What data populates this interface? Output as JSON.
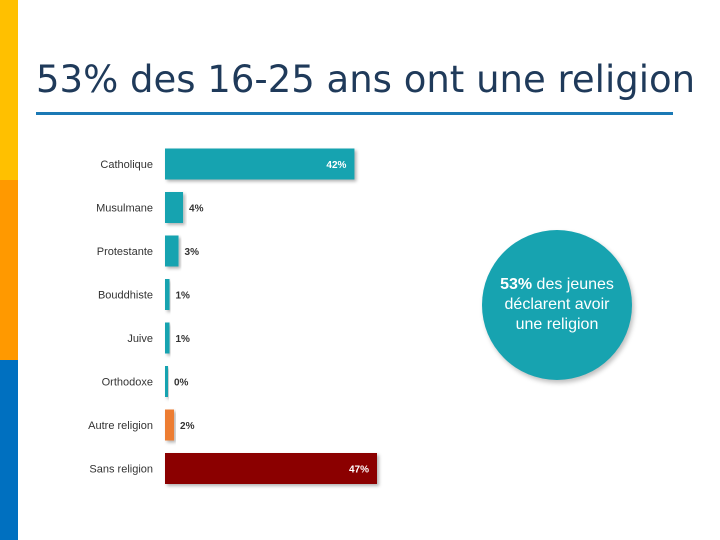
{
  "slide": {
    "title": "53% des 16-25 ans ont une religion"
  },
  "callout": {
    "highlight": "53%",
    "text": " des jeunes déclarent avoir une religion"
  },
  "colors": {
    "religion_bar": "#17A3B0",
    "other_religion_bar": "#ED7D31",
    "no_religion_bar": "#8B0000"
  },
  "chart_data": {
    "type": "bar",
    "orientation": "horizontal",
    "categories": [
      "Catholique",
      "Musulmane",
      "Protestante",
      "Bouddhiste",
      "Juive",
      "Orthodoxe",
      "Autre religion",
      "Sans religion"
    ],
    "values": [
      42,
      4,
      3,
      1,
      1,
      0,
      2,
      47
    ],
    "labels": [
      "42%",
      "4%",
      "3%",
      "1%",
      "1%",
      "0%",
      "2%",
      "47%"
    ],
    "unit": "%",
    "bar_colors": [
      "#17A3B0",
      "#17A3B0",
      "#17A3B0",
      "#17A3B0",
      "#17A3B0",
      "#17A3B0",
      "#ED7D31",
      "#8B0000"
    ],
    "title": "",
    "xlabel": "",
    "ylabel": "",
    "xlim": [
      0,
      47
    ]
  }
}
